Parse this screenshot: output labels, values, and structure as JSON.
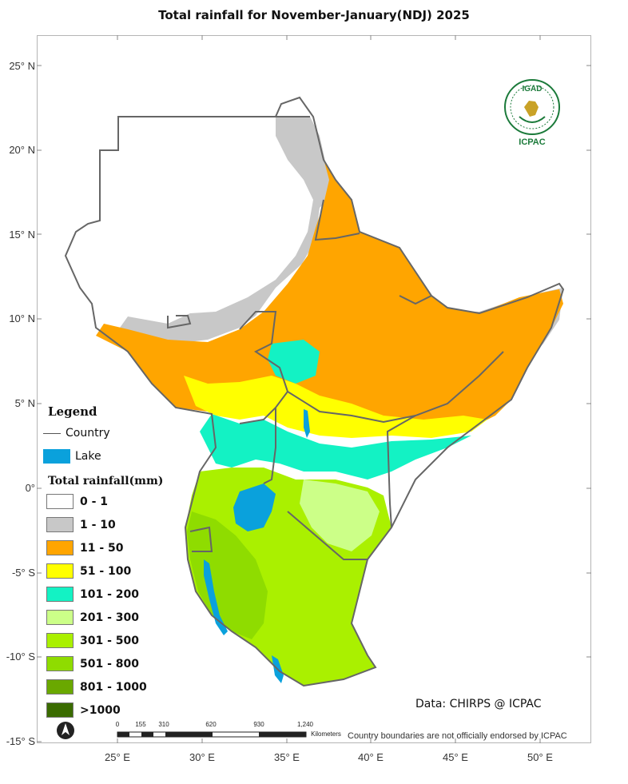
{
  "title": "Total rainfall  for November-January(NDJ) 2025",
  "latitude_labels": [
    "25° N",
    "20° N",
    "15° N",
    "10° N",
    "5° N",
    "0°",
    "-5° S",
    "-10° S",
    "-15° S"
  ],
  "longitude_labels": [
    "25° E",
    "30° E",
    "35° E",
    "40° E",
    "45° E",
    "50° E"
  ],
  "legend": {
    "heading": "Legend",
    "country_label": "Country",
    "lake_label": "Lake",
    "lake_color": "#0aa1dc",
    "rainfall_title": "Total rainfall(mm)",
    "classes": [
      {
        "label": "0 - 1",
        "color": "#ffffff"
      },
      {
        "label": "1 - 10",
        "color": "#c8c8c8"
      },
      {
        "label": "11 - 50",
        "color": "#ffa500"
      },
      {
        "label": "51 - 100",
        "color": "#ffff00"
      },
      {
        "label": "101 - 200",
        "color": "#13f2c4"
      },
      {
        "label": "201 - 300",
        "color": "#ccff88"
      },
      {
        "label": "301 - 500",
        "color": "#aaf000"
      },
      {
        "label": "501 - 800",
        "color": "#8fdc00"
      },
      {
        "label": "801 - 1000",
        "color": "#6aa800"
      },
      {
        "label": ">1000",
        "color": "#3a6b00"
      }
    ]
  },
  "credit": "Data: CHIRPS @ ICPAC",
  "disclaimer": "Country boundaries are not officially endorsed by ICPAC",
  "scalebar": {
    "ticks": [
      "0",
      "155",
      "310",
      "620",
      "930",
      "1,240"
    ],
    "unit": "Kilometers"
  },
  "logo": {
    "top_text": "IGAD",
    "bottom_text": "ICPAC"
  },
  "north_arrow_label": "N"
}
